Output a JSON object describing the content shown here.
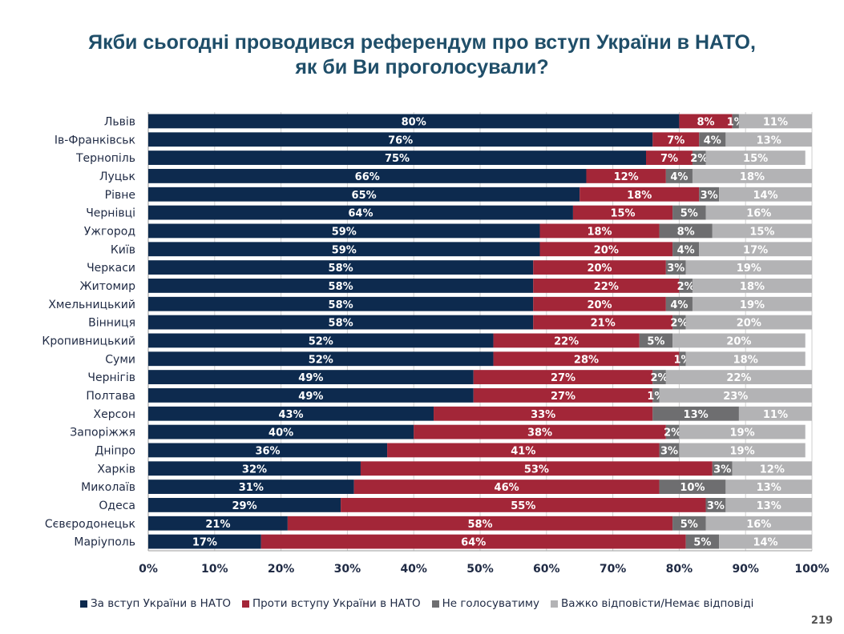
{
  "title_lines": [
    "Якби сьогодні проводився референдум про вступ України в НАТО,",
    "як би Ви проголосували?"
  ],
  "page_number": "219",
  "chart_data": {
    "type": "bar",
    "orientation": "horizontal",
    "stacked": true,
    "categories": [
      "Львів",
      "Ів-Франківськ",
      "Тернопіль",
      "Луцьк",
      "Рівне",
      "Чернівці",
      "Ужгород",
      "Київ",
      "Черкаси",
      "Житомир",
      "Хмельницький",
      "Вінниця",
      "Кропивницький",
      "Суми",
      "Чернігів",
      "Полтава",
      "Херсон",
      "Запоріжжя",
      "Дніпро",
      "Харків",
      "Миколаїв",
      "Одеса",
      "Сєвєродонецьк",
      "Маріуполь"
    ],
    "series": [
      {
        "name": "За вступ України в НАТО",
        "color": "#0d2a4e",
        "values": [
          80,
          76,
          75,
          66,
          65,
          64,
          59,
          59,
          58,
          58,
          58,
          58,
          52,
          52,
          49,
          49,
          43,
          40,
          36,
          32,
          31,
          29,
          21,
          17
        ]
      },
      {
        "name": "Проти вступу України в НАТО",
        "color": "#a32638",
        "values": [
          8,
          7,
          7,
          12,
          18,
          15,
          18,
          20,
          20,
          22,
          20,
          21,
          22,
          28,
          27,
          27,
          33,
          38,
          41,
          53,
          46,
          55,
          58,
          64
        ]
      },
      {
        "name": "Не голосуватиму",
        "color": "#6e6e70",
        "values": [
          1,
          4,
          2,
          4,
          3,
          5,
          8,
          4,
          3,
          2,
          4,
          2,
          5,
          1,
          2,
          1,
          13,
          2,
          3,
          3,
          10,
          3,
          5,
          5
        ]
      },
      {
        "name": "Важко відповісти/Немає відповіді",
        "color": "#b3b3b5",
        "values": [
          11,
          13,
          15,
          18,
          14,
          16,
          15,
          17,
          19,
          18,
          19,
          20,
          20,
          18,
          22,
          23,
          11,
          19,
          19,
          12,
          13,
          13,
          16,
          14
        ]
      }
    ],
    "x_ticks": [
      "0%",
      "10%",
      "20%",
      "30%",
      "40%",
      "50%",
      "60%",
      "70%",
      "80%",
      "90%",
      "100%"
    ],
    "xlim": [
      0,
      100
    ],
    "legend_position": "bottom",
    "grid": true
  }
}
